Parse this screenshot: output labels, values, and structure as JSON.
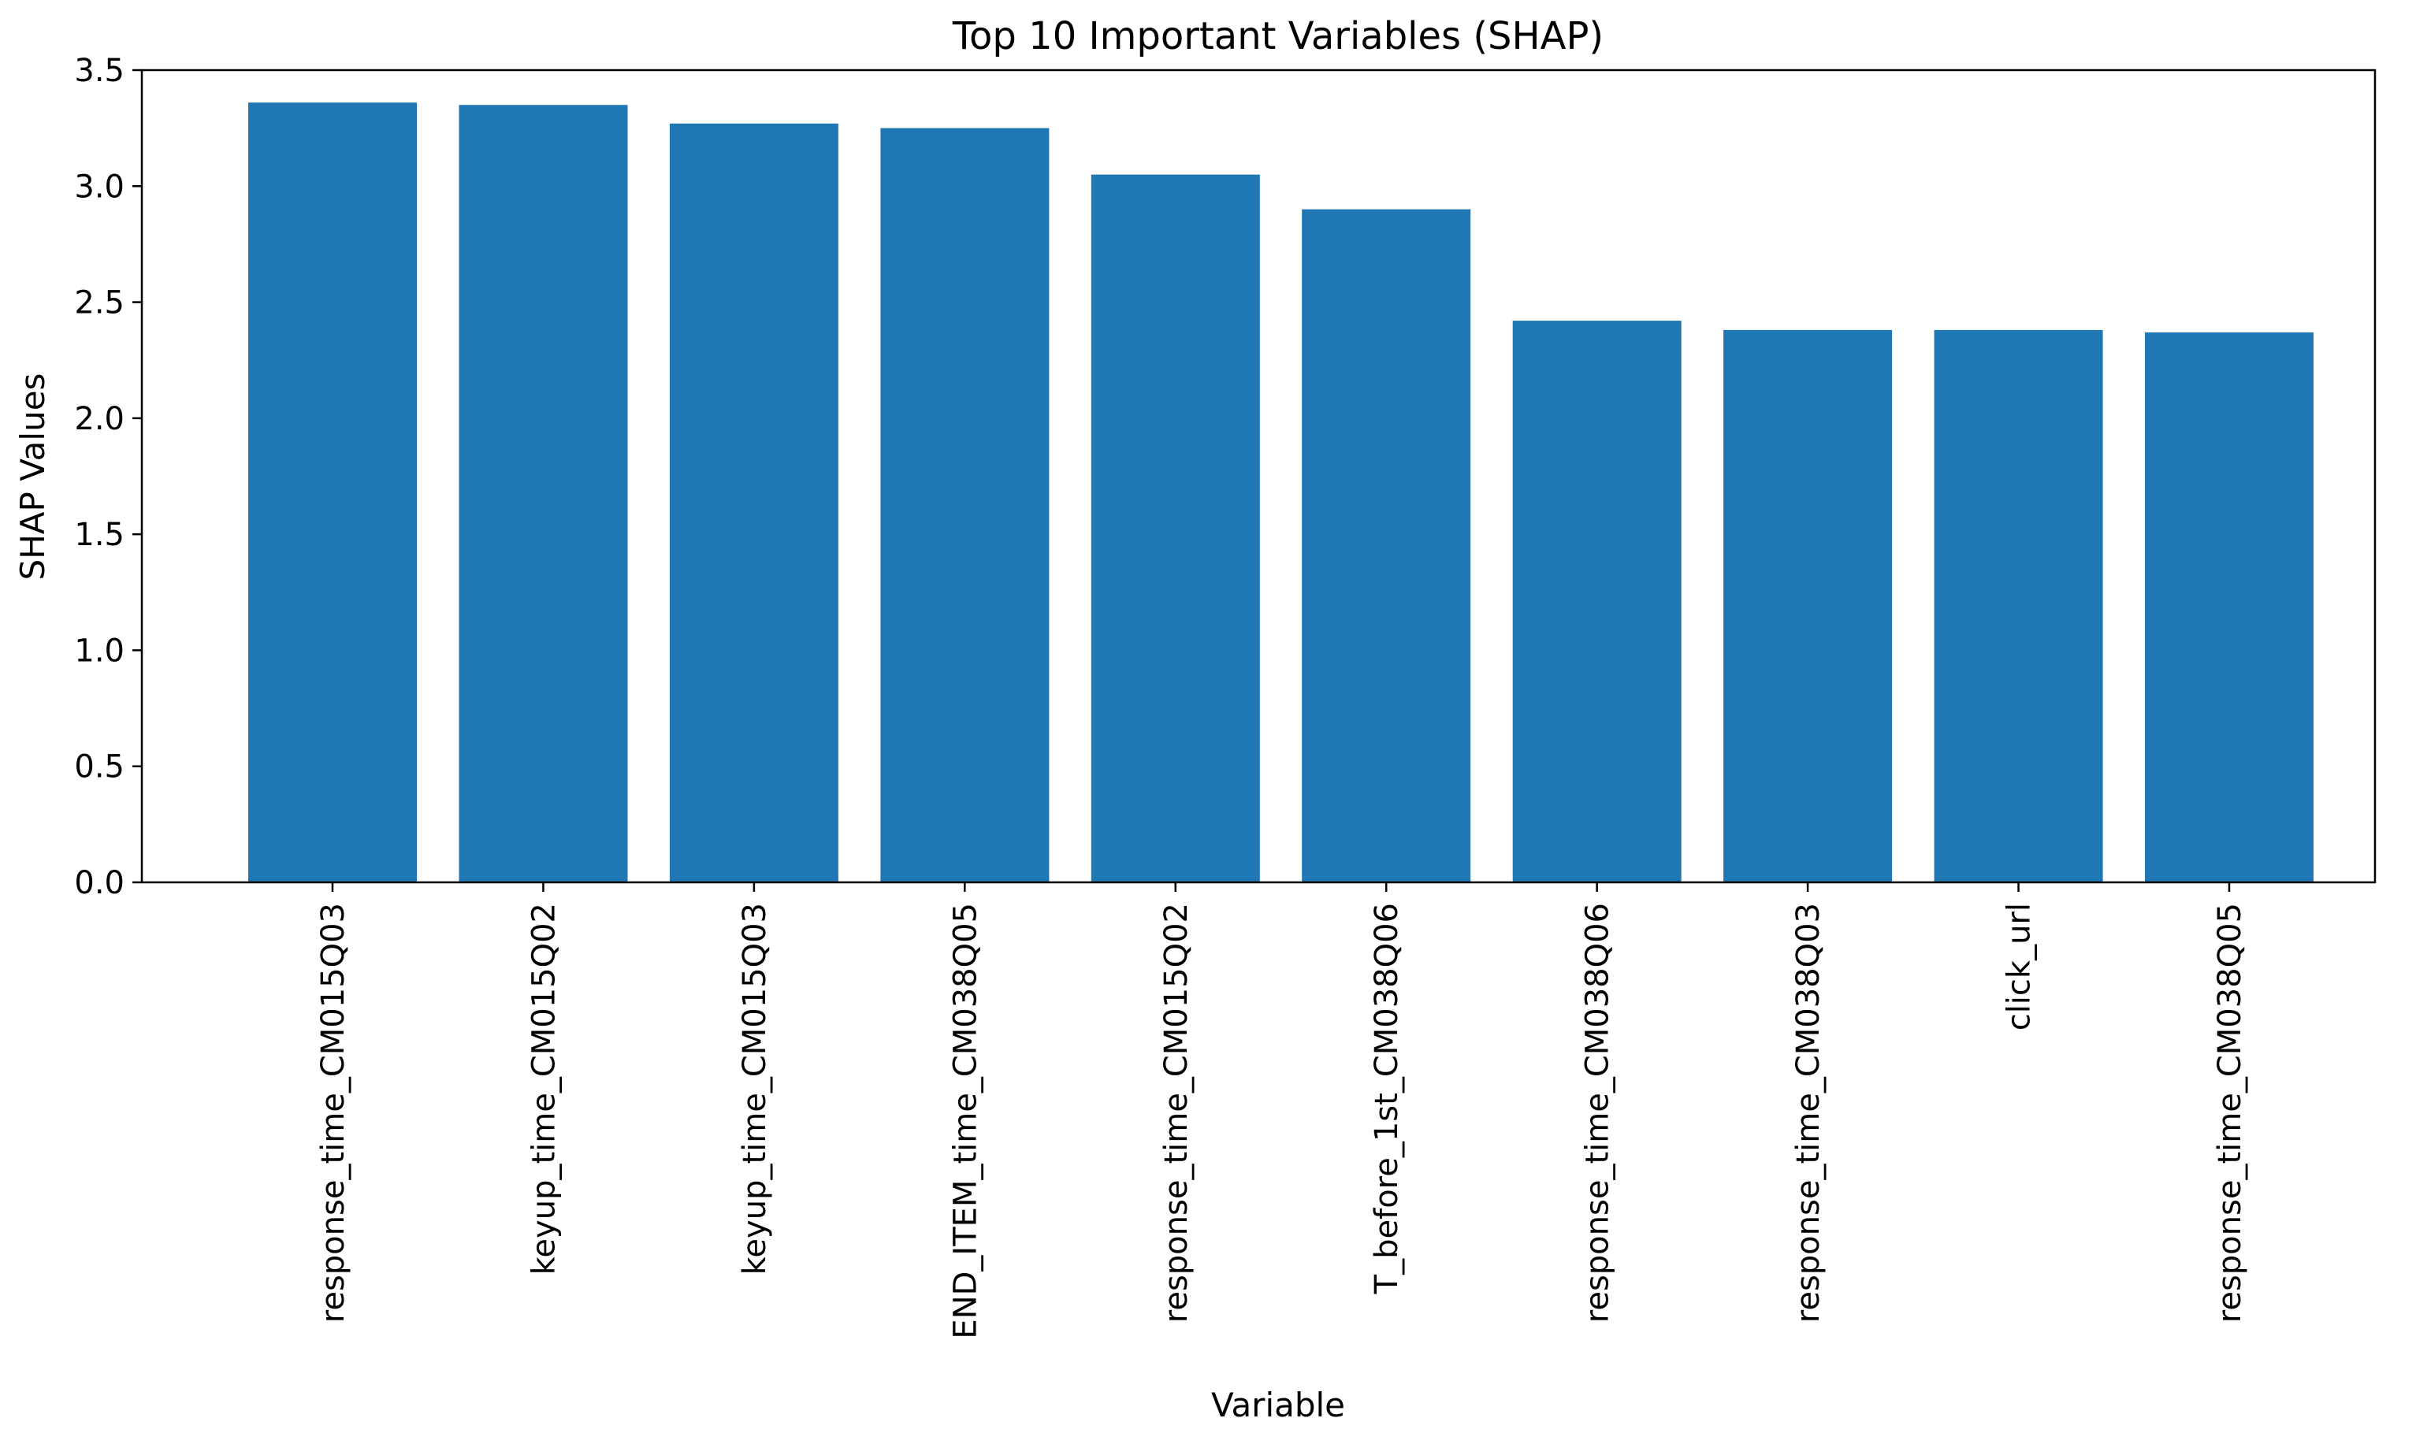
{
  "chart_data": {
    "type": "bar",
    "title": "Top 10 Important Variables (SHAP)",
    "xlabel": "Variable",
    "ylabel": "SHAP Values",
    "categories": [
      "response_time_CM015Q03",
      "keyup_time_CM015Q02",
      "keyup_time_CM015Q03",
      "END_ITEM_time_CM038Q05",
      "response_time_CM015Q02",
      "T_before_1st_CM038Q06",
      "response_time_CM038Q06",
      "response_time_CM038Q03",
      "click_url",
      "response_time_CM038Q05"
    ],
    "values": [
      3.36,
      3.35,
      3.27,
      3.25,
      3.05,
      2.9,
      2.42,
      2.38,
      2.38,
      2.37
    ],
    "ylim": [
      0,
      3.5
    ],
    "yticks": [
      "0.0",
      "0.5",
      "1.0",
      "1.5",
      "2.0",
      "2.5",
      "3.0",
      "3.5"
    ],
    "bar_color": "#1f77b4",
    "grid": false,
    "legend": "none"
  }
}
